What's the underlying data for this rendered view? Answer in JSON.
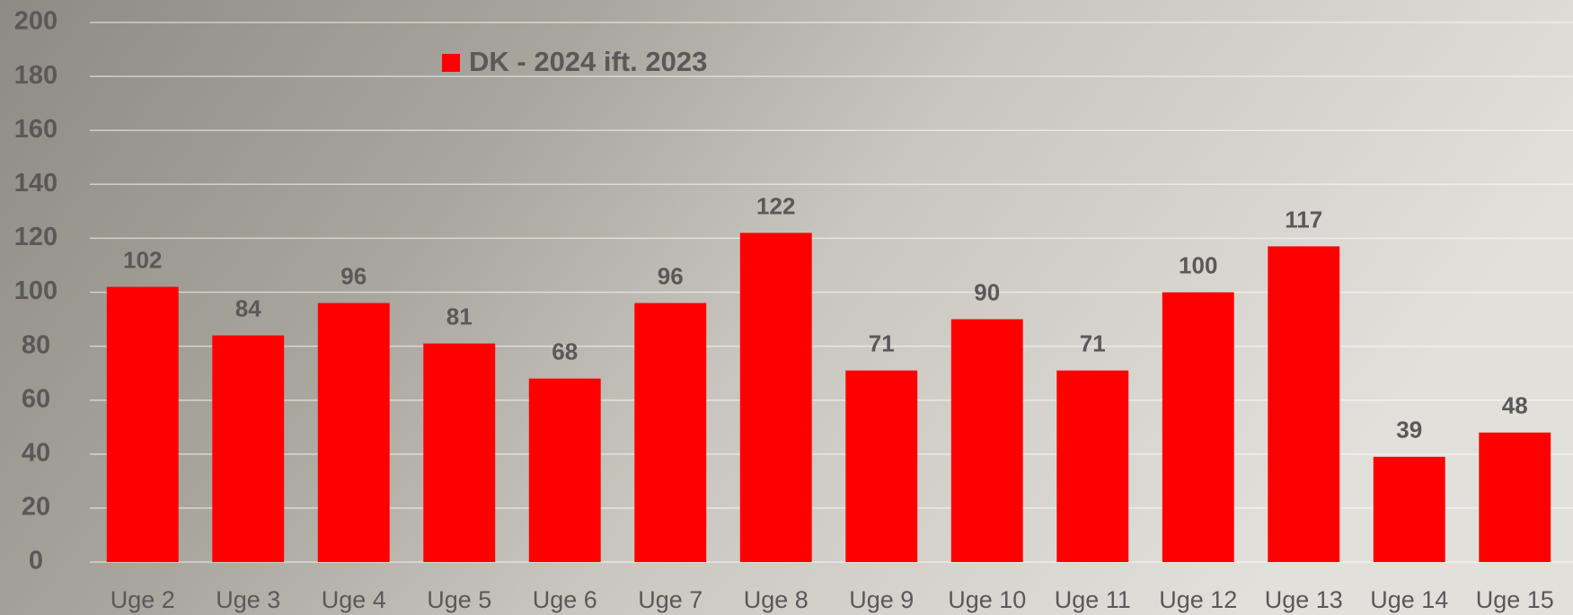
{
  "chart_data": {
    "type": "bar",
    "categories": [
      "Uge 2",
      "Uge 3",
      "Uge 4",
      "Uge 5",
      "Uge 6",
      "Uge 7",
      "Uge 8",
      "Uge 9",
      "Uge 10",
      "Uge 11",
      "Uge 12",
      "Uge 13",
      "Uge 14",
      "Uge 15"
    ],
    "series": [
      {
        "name": "DK - 2024 ift. 2023",
        "color": "#ff0000",
        "values": [
          102,
          84,
          96,
          81,
          68,
          96,
          122,
          71,
          90,
          71,
          100,
          117,
          39,
          48
        ]
      }
    ],
    "ylim": [
      0,
      200
    ],
    "yticks": [
      0,
      20,
      40,
      60,
      80,
      100,
      120,
      140,
      160,
      180,
      200
    ],
    "grid": true
  }
}
